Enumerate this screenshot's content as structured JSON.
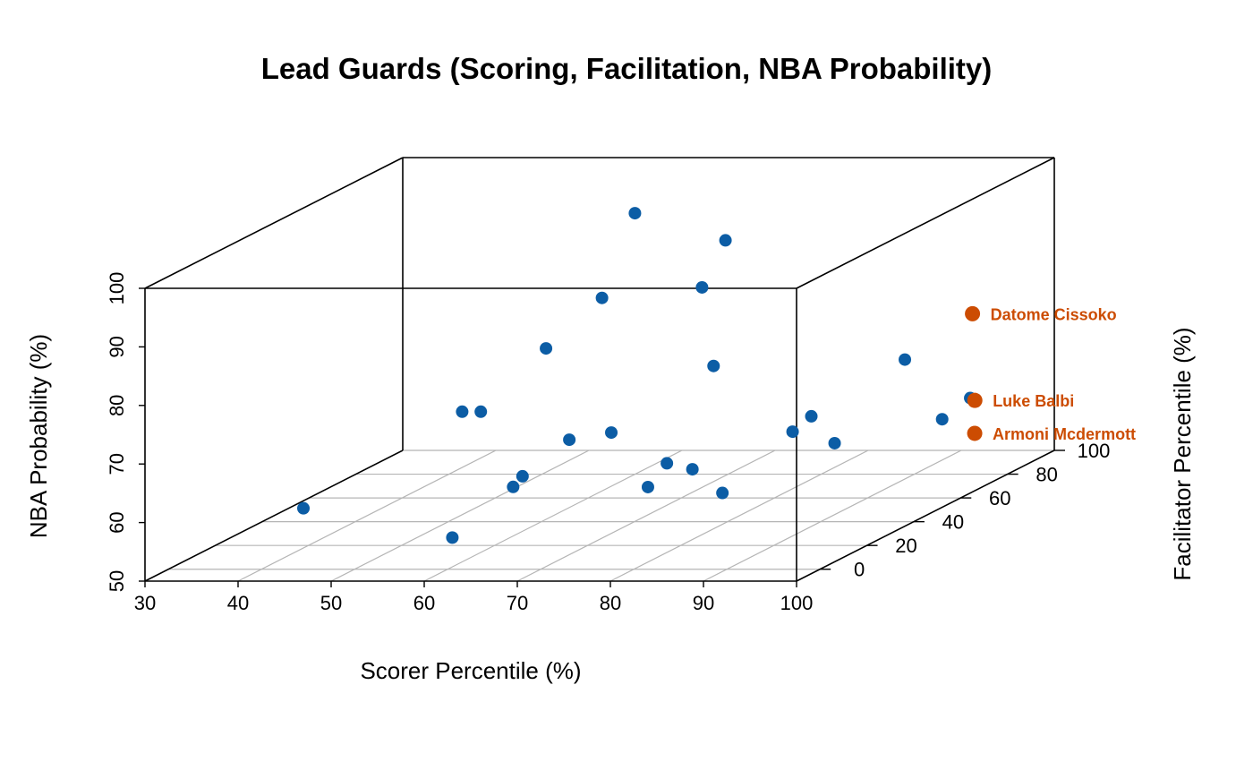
{
  "chart_data": {
    "type": "scatter3d",
    "title": "Lead Guards (Scoring, Facilitation, NBA Probability)",
    "xlabel": "Scorer Percentile (%)",
    "ylabel": "Facilitator Percentile (%)",
    "zlabel": "NBA Probability (%)",
    "xlim": [
      30,
      100
    ],
    "ylim": [
      -10,
      100
    ],
    "zlim": [
      50,
      100
    ],
    "x_ticks": [
      "30",
      "40",
      "50",
      "60",
      "70",
      "80",
      "90",
      "100"
    ],
    "y_ticks": [
      "0",
      "20",
      "40",
      "60",
      "80",
      "100"
    ],
    "z_ticks": [
      "50",
      "60",
      "70",
      "80",
      "90",
      "100"
    ],
    "grid": true,
    "colors": {
      "default": "#0C5DA5",
      "highlight": "#CC4C02"
    },
    "points": [
      {
        "x": 44,
        "y": 2,
        "z": 60
      },
      {
        "x": 60,
        "y": 2,
        "z": 55
      },
      {
        "x": 62,
        "y": 20,
        "z": 60
      },
      {
        "x": 62,
        "y": 24,
        "z": 61
      },
      {
        "x": 53,
        "y": 34,
        "z": 70
      },
      {
        "x": 55,
        "y": 34,
        "z": 70
      },
      {
        "x": 61,
        "y": 38,
        "z": 80
      },
      {
        "x": 63,
        "y": 40,
        "z": 64
      },
      {
        "x": 65,
        "y": 46,
        "z": 87
      },
      {
        "x": 63,
        "y": 68,
        "z": 97
      },
      {
        "x": 66,
        "y": 46,
        "z": 64
      },
      {
        "x": 76,
        "y": 30,
        "z": 62
      },
      {
        "x": 79,
        "y": 10,
        "z": 62
      },
      {
        "x": 80,
        "y": 25,
        "z": 62
      },
      {
        "x": 79,
        "y": 38,
        "z": 77
      },
      {
        "x": 76,
        "y": 55,
        "z": 95
      },
      {
        "x": 76,
        "y": 45,
        "z": 89
      },
      {
        "x": 87,
        "y": 10,
        "z": 61
      },
      {
        "x": 89,
        "y": 32,
        "z": 67
      },
      {
        "x": 89,
        "y": 40,
        "z": 68
      },
      {
        "x": 91,
        "y": 42,
        "z": 63
      },
      {
        "x": 92,
        "y": 68,
        "z": 72
      },
      {
        "x": 95,
        "y": 72,
        "z": 61
      },
      {
        "x": 96,
        "y": 80,
        "z": 63
      },
      {
        "x": 97,
        "y": 77,
        "z": 78,
        "label": "Datome Cissoko"
      },
      {
        "x": 97,
        "y": 78,
        "z": 63,
        "label": "Luke Balbi"
      },
      {
        "x": 99,
        "y": 70,
        "z": 59,
        "label": "Armoni Mcdermott"
      }
    ]
  }
}
